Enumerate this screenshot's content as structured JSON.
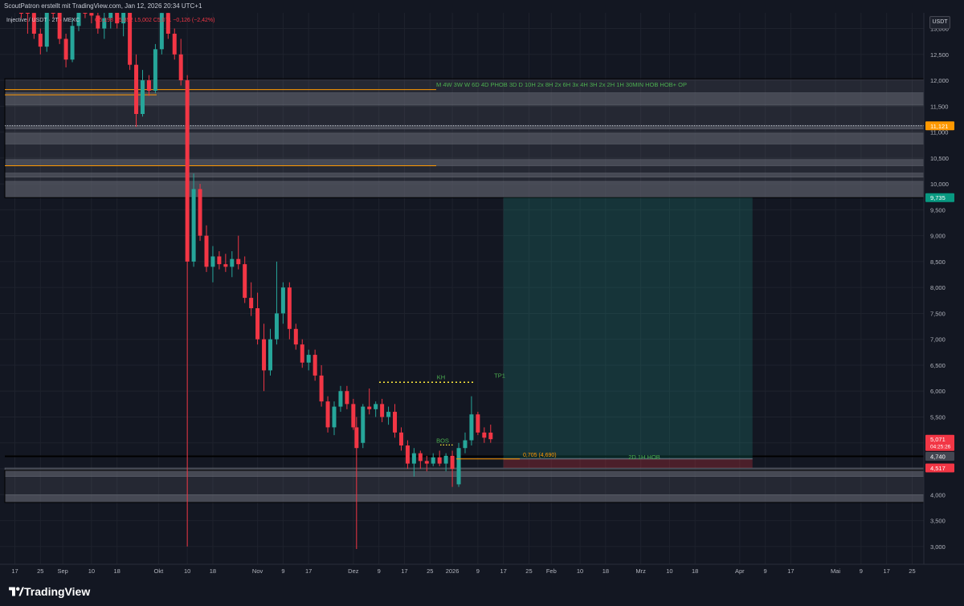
{
  "header": {
    "attribution": "ScoutPatron erstellt mit TradingView.com, Jan 12, 2026 20:34 UTC+1",
    "symbol": "Injective / USDT · 2T · MEXC",
    "ohlc": "O5,198 H5,352 L5,002 C5,071 −0,126 (−2,42%)"
  },
  "footer": {
    "brand": "TradingView"
  },
  "axis": {
    "currency": "USDT"
  },
  "colors": {
    "bull": "#26a69a",
    "bear": "#f23645",
    "background": "#131722",
    "zone": "#5d606b",
    "orange": "#ff9800",
    "annotation_green": "#4caf50",
    "target": "#22ab94",
    "stop": "#f23645"
  },
  "chart_data": {
    "type": "candlestick",
    "timeframe": "2D",
    "y_ticks": [
      3000,
      3500,
      4000,
      4500,
      5000,
      5500,
      6000,
      6500,
      7000,
      7500,
      8000,
      8500,
      9000,
      9500,
      10000,
      10500,
      11000,
      11500,
      12000,
      12500,
      13000
    ],
    "y_tick_labels": [
      "3,000",
      "3,500",
      "4,000",
      "4,500",
      "5,000",
      "5,500",
      "6,000",
      "6,500",
      "7,000",
      "7,500",
      "8,000",
      "8,500",
      "9,000",
      "9,500",
      "10,000",
      "10,500",
      "11,000",
      "11,500",
      "12,000",
      "12,500",
      "13,000"
    ],
    "ylim": [
      2800,
      13500
    ],
    "x_labels": [
      {
        "day": 0,
        "label": "17"
      },
      {
        "day": 8,
        "label": "25"
      },
      {
        "day": 15,
        "label": "Sep"
      },
      {
        "day": 24,
        "label": "10"
      },
      {
        "day": 32,
        "label": "18"
      },
      {
        "day": 45,
        "label": "Okt"
      },
      {
        "day": 54,
        "label": "10"
      },
      {
        "day": 62,
        "label": "18"
      },
      {
        "day": 76,
        "label": "Nov"
      },
      {
        "day": 84,
        "label": "9"
      },
      {
        "day": 92,
        "label": "17"
      },
      {
        "day": 106,
        "label": "Dez"
      },
      {
        "day": 114,
        "label": "9"
      },
      {
        "day": 122,
        "label": "17"
      },
      {
        "day": 130,
        "label": "25"
      },
      {
        "day": 137,
        "label": "2026"
      },
      {
        "day": 145,
        "label": "9"
      },
      {
        "day": 153,
        "label": "17"
      },
      {
        "day": 161,
        "label": "25"
      },
      {
        "day": 168,
        "label": "Feb"
      },
      {
        "day": 177,
        "label": "10"
      },
      {
        "day": 185,
        "label": "18"
      },
      {
        "day": 196,
        "label": "Mrz"
      },
      {
        "day": 205,
        "label": "10"
      },
      {
        "day": 213,
        "label": "18"
      },
      {
        "day": 227,
        "label": "Apr"
      },
      {
        "day": 235,
        "label": "9"
      },
      {
        "day": 243,
        "label": "17"
      },
      {
        "day": 257,
        "label": "Mai"
      },
      {
        "day": 265,
        "label": "9"
      },
      {
        "day": 273,
        "label": "17"
      },
      {
        "day": 281,
        "label": "25"
      }
    ],
    "candles": [
      {
        "day": 2,
        "o": 13800,
        "h": 14200,
        "l": 13200,
        "c": 13500
      },
      {
        "day": 4,
        "o": 13500,
        "h": 13900,
        "l": 12900,
        "c": 13300
      },
      {
        "day": 6,
        "o": 13300,
        "h": 13500,
        "l": 12800,
        "c": 12900
      },
      {
        "day": 8,
        "o": 12900,
        "h": 13000,
        "l": 12500,
        "c": 12650
      },
      {
        "day": 10,
        "o": 12650,
        "h": 13600,
        "l": 12550,
        "c": 13500
      },
      {
        "day": 12,
        "o": 13500,
        "h": 13700,
        "l": 13200,
        "c": 13400
      },
      {
        "day": 14,
        "o": 13400,
        "h": 13600,
        "l": 12700,
        "c": 12800
      },
      {
        "day": 16,
        "o": 12800,
        "h": 12900,
        "l": 12250,
        "c": 12400
      },
      {
        "day": 18,
        "o": 12400,
        "h": 13200,
        "l": 12350,
        "c": 13050
      },
      {
        "day": 20,
        "o": 13050,
        "h": 13700,
        "l": 12950,
        "c": 13600
      },
      {
        "day": 22,
        "o": 13600,
        "h": 13800,
        "l": 13200,
        "c": 13300
      },
      {
        "day": 24,
        "o": 13300,
        "h": 13700,
        "l": 13100,
        "c": 13250
      },
      {
        "day": 26,
        "o": 13250,
        "h": 13500,
        "l": 12900,
        "c": 13000
      },
      {
        "day": 28,
        "o": 13000,
        "h": 13400,
        "l": 12800,
        "c": 13200
      },
      {
        "day": 30,
        "o": 13200,
        "h": 13800,
        "l": 13000,
        "c": 13600
      },
      {
        "day": 32,
        "o": 13600,
        "h": 13700,
        "l": 13000,
        "c": 13100
      },
      {
        "day": 34,
        "o": 13100,
        "h": 13500,
        "l": 12850,
        "c": 13400
      },
      {
        "day": 36,
        "o": 13400,
        "h": 13700,
        "l": 12200,
        "c": 12300
      },
      {
        "day": 38,
        "o": 12300,
        "h": 12500,
        "l": 11100,
        "c": 11350
      },
      {
        "day": 40,
        "o": 11350,
        "h": 12200,
        "l": 11300,
        "c": 12000
      },
      {
        "day": 42,
        "o": 12000,
        "h": 12100,
        "l": 11700,
        "c": 11800
      },
      {
        "day": 44,
        "o": 11800,
        "h": 12700,
        "l": 11750,
        "c": 12600
      },
      {
        "day": 46,
        "o": 12600,
        "h": 13400,
        "l": 12500,
        "c": 13300
      },
      {
        "day": 48,
        "o": 13300,
        "h": 13400,
        "l": 12800,
        "c": 12900
      },
      {
        "day": 50,
        "o": 12900,
        "h": 13000,
        "l": 12400,
        "c": 12500
      },
      {
        "day": 52,
        "o": 12500,
        "h": 12800,
        "l": 11900,
        "c": 12000
      },
      {
        "day": 54,
        "o": 12000,
        "h": 12100,
        "l": 3000,
        "c": 8500
      },
      {
        "day": 56,
        "o": 8500,
        "h": 10200,
        "l": 8400,
        "c": 9900
      },
      {
        "day": 58,
        "o": 9900,
        "h": 10000,
        "l": 8900,
        "c": 9000
      },
      {
        "day": 60,
        "o": 9000,
        "h": 9200,
        "l": 8300,
        "c": 8400
      },
      {
        "day": 62,
        "o": 8400,
        "h": 8800,
        "l": 8100,
        "c": 8600
      },
      {
        "day": 64,
        "o": 8600,
        "h": 8700,
        "l": 8350,
        "c": 8450
      },
      {
        "day": 66,
        "o": 8450,
        "h": 8650,
        "l": 8300,
        "c": 8400
      },
      {
        "day": 68,
        "o": 8400,
        "h": 8700,
        "l": 8200,
        "c": 8550
      },
      {
        "day": 70,
        "o": 8550,
        "h": 9000,
        "l": 8350,
        "c": 8450
      },
      {
        "day": 72,
        "o": 8450,
        "h": 8600,
        "l": 7700,
        "c": 7800
      },
      {
        "day": 74,
        "o": 7800,
        "h": 8100,
        "l": 7450,
        "c": 7600
      },
      {
        "day": 76,
        "o": 7600,
        "h": 7900,
        "l": 6900,
        "c": 7000
      },
      {
        "day": 78,
        "o": 7000,
        "h": 7300,
        "l": 6000,
        "c": 6400
      },
      {
        "day": 80,
        "o": 6400,
        "h": 7200,
        "l": 6300,
        "c": 7000
      },
      {
        "day": 82,
        "o": 7000,
        "h": 8500,
        "l": 6900,
        "c": 7500
      },
      {
        "day": 84,
        "o": 7500,
        "h": 8100,
        "l": 7300,
        "c": 8000
      },
      {
        "day": 86,
        "o": 8000,
        "h": 8100,
        "l": 7000,
        "c": 7200
      },
      {
        "day": 88,
        "o": 7200,
        "h": 7300,
        "l": 6800,
        "c": 6900
      },
      {
        "day": 90,
        "o": 6900,
        "h": 7000,
        "l": 6450,
        "c": 6550
      },
      {
        "day": 92,
        "o": 6550,
        "h": 6800,
        "l": 6400,
        "c": 6700
      },
      {
        "day": 94,
        "o": 6700,
        "h": 6800,
        "l": 6200,
        "c": 6300
      },
      {
        "day": 96,
        "o": 6300,
        "h": 6500,
        "l": 5700,
        "c": 5800
      },
      {
        "day": 98,
        "o": 5800,
        "h": 5900,
        "l": 5200,
        "c": 5300
      },
      {
        "day": 100,
        "o": 5300,
        "h": 5800,
        "l": 5150,
        "c": 5700
      },
      {
        "day": 102,
        "o": 5700,
        "h": 6100,
        "l": 5600,
        "c": 6000
      },
      {
        "day": 104,
        "o": 6000,
        "h": 6100,
        "l": 5650,
        "c": 5750
      },
      {
        "day": 106,
        "o": 5750,
        "h": 5850,
        "l": 5250,
        "c": 5300
      },
      {
        "day": 107,
        "o": 5300,
        "h": 5500,
        "l": 2950,
        "c": 4900
      },
      {
        "day": 109,
        "o": 5000,
        "h": 5750,
        "l": 4900,
        "c": 5700
      },
      {
        "day": 111,
        "o": 5700,
        "h": 6050,
        "l": 5550,
        "c": 5650
      },
      {
        "day": 113,
        "o": 5650,
        "h": 5800,
        "l": 5500,
        "c": 5750
      },
      {
        "day": 115,
        "o": 5750,
        "h": 5850,
        "l": 5400,
        "c": 5500
      },
      {
        "day": 117,
        "o": 5500,
        "h": 5700,
        "l": 5350,
        "c": 5600
      },
      {
        "day": 119,
        "o": 5600,
        "h": 5750,
        "l": 5100,
        "c": 5200
      },
      {
        "day": 121,
        "o": 5200,
        "h": 5300,
        "l": 4850,
        "c": 4950
      },
      {
        "day": 123,
        "o": 4950,
        "h": 5050,
        "l": 4500,
        "c": 4600
      },
      {
        "day": 125,
        "o": 4600,
        "h": 4900,
        "l": 4350,
        "c": 4800
      },
      {
        "day": 127,
        "o": 4800,
        "h": 4850,
        "l": 4500,
        "c": 4650
      },
      {
        "day": 129,
        "o": 4650,
        "h": 4750,
        "l": 4450,
        "c": 4600
      },
      {
        "day": 131,
        "o": 4600,
        "h": 4800,
        "l": 4550,
        "c": 4720
      },
      {
        "day": 133,
        "o": 4720,
        "h": 4850,
        "l": 4550,
        "c": 4600
      },
      {
        "day": 135,
        "o": 4600,
        "h": 4800,
        "l": 4450,
        "c": 4750
      },
      {
        "day": 137,
        "o": 4750,
        "h": 4850,
        "l": 4150,
        "c": 4500
      },
      {
        "day": 139,
        "o": 4200,
        "h": 5000,
        "l": 4150,
        "c": 4900
      },
      {
        "day": 141,
        "o": 4900,
        "h": 5200,
        "l": 4800,
        "c": 5050
      },
      {
        "day": 143,
        "o": 5050,
        "h": 5900,
        "l": 4950,
        "c": 5550
      },
      {
        "day": 145,
        "o": 5550,
        "h": 5600,
        "l": 5150,
        "c": 5200
      },
      {
        "day": 147,
        "o": 5200,
        "h": 5300,
        "l": 5000,
        "c": 5100
      },
      {
        "day": 149,
        "o": 5198,
        "h": 5352,
        "l": 5002,
        "c": 5071
      }
    ],
    "zones": [
      {
        "from": 11520,
        "to": 11760
      },
      {
        "from": 11060,
        "to": 11130
      },
      {
        "from": 10770,
        "to": 10980
      },
      {
        "from": 10350,
        "to": 10470
      },
      {
        "from": 10130,
        "to": 10210
      },
      {
        "from": 9735,
        "to": 10050
      },
      {
        "from": 4350,
        "to": 4517
      },
      {
        "from": 3850,
        "to": 4000
      }
    ],
    "orange_lines": [
      11820,
      11720,
      10350
    ],
    "dotted_line": {
      "price": 11121
    },
    "annotations": {
      "timeframes": "M 4W 3W W 6D 4D PHOB 3D D 10H 2x 8H 2x 6H 3x 4H 3H 2x 2H 1H 30MIN HOB HOB+ OP",
      "kh": "KH",
      "tp1": "TP1",
      "bos": "BOS",
      "fib": "0,705 (4,690)",
      "hob": "2D 1H HOB",
      "kh_price": 6170,
      "bos_price": 4960,
      "fib_price": 4690
    },
    "position": {
      "entry": 4690,
      "target": 9735,
      "stop": 4517,
      "start_day": 153,
      "end_day": 231
    },
    "price_labels": [
      {
        "price": 11121,
        "label": "11,121",
        "color": "#ff9800"
      },
      {
        "price": 9735,
        "label": "9,735",
        "color": "#089981"
      },
      {
        "price": 5071,
        "label": "5,071",
        "color": "#f23645",
        "sub": "04:25:26"
      },
      {
        "price": 4740,
        "label": "4,740",
        "color": "#434651"
      },
      {
        "price": 4517,
        "label": "4,517",
        "color": "#f23645"
      }
    ]
  }
}
